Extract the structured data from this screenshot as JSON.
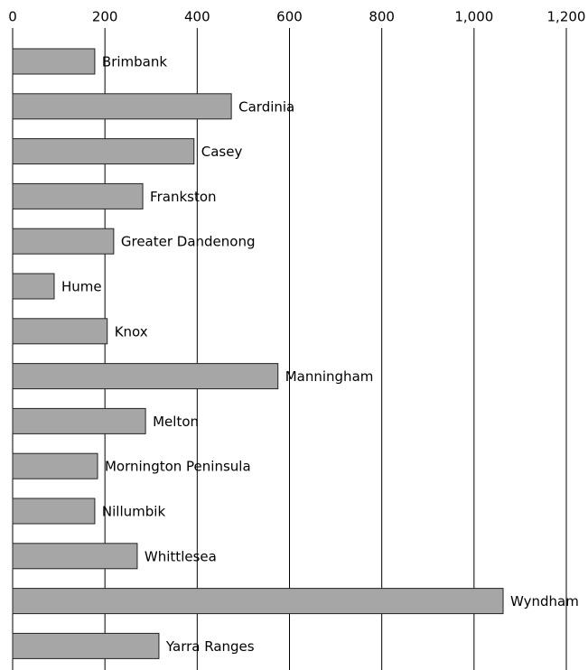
{
  "chart_data": {
    "type": "hbar",
    "categories": [
      "Brimbank",
      "Cardinia",
      "Casey",
      "Frankston",
      "Greater Dandenong",
      "Hume",
      "Knox",
      "Manningham",
      "Melton",
      "Mornington Peninsula",
      "Nillumbik",
      "Whittlesea",
      "Wyndham",
      "Yarra Ranges"
    ],
    "values": [
      178,
      474,
      393,
      282,
      219,
      90,
      205,
      575,
      288,
      184,
      178,
      270,
      1063,
      317
    ],
    "color": "#a6a6a6",
    "xlim": [
      0,
      1200
    ],
    "xticks": [
      0,
      200,
      400,
      600,
      800,
      {
        "value": 1000,
        "label": "1,000"
      },
      {
        "value": 1200,
        "label": "1,200"
      }
    ],
    "grid": true
  }
}
